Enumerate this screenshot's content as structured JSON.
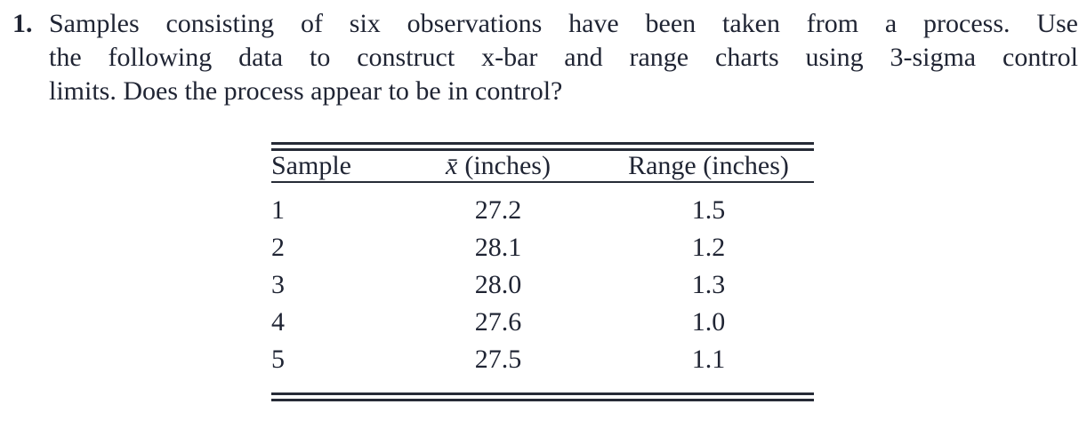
{
  "problem": {
    "number": "1.",
    "lines": [
      "Samples consisting of six observations have been taken from a process. Use",
      "the following data to construct x-bar and range charts using 3-sigma control",
      "limits. Does the process appear to be in control?"
    ]
  },
  "table": {
    "headers": {
      "sample": "Sample",
      "xbar_symbol": "x̄",
      "xbar_unit": "(inches)",
      "range": "Range (inches)"
    },
    "rows": [
      {
        "sample": "1",
        "xbar": "27.2",
        "range": "1.5"
      },
      {
        "sample": "2",
        "xbar": "28.1",
        "range": "1.2"
      },
      {
        "sample": "3",
        "xbar": "28.0",
        "range": "1.3"
      },
      {
        "sample": "4",
        "xbar": "27.6",
        "range": "1.0"
      },
      {
        "sample": "5",
        "xbar": "27.5",
        "range": "1.1"
      }
    ]
  },
  "colors": {
    "text": "#1f2433",
    "rule": "#262b36",
    "background": "#ffffff"
  }
}
